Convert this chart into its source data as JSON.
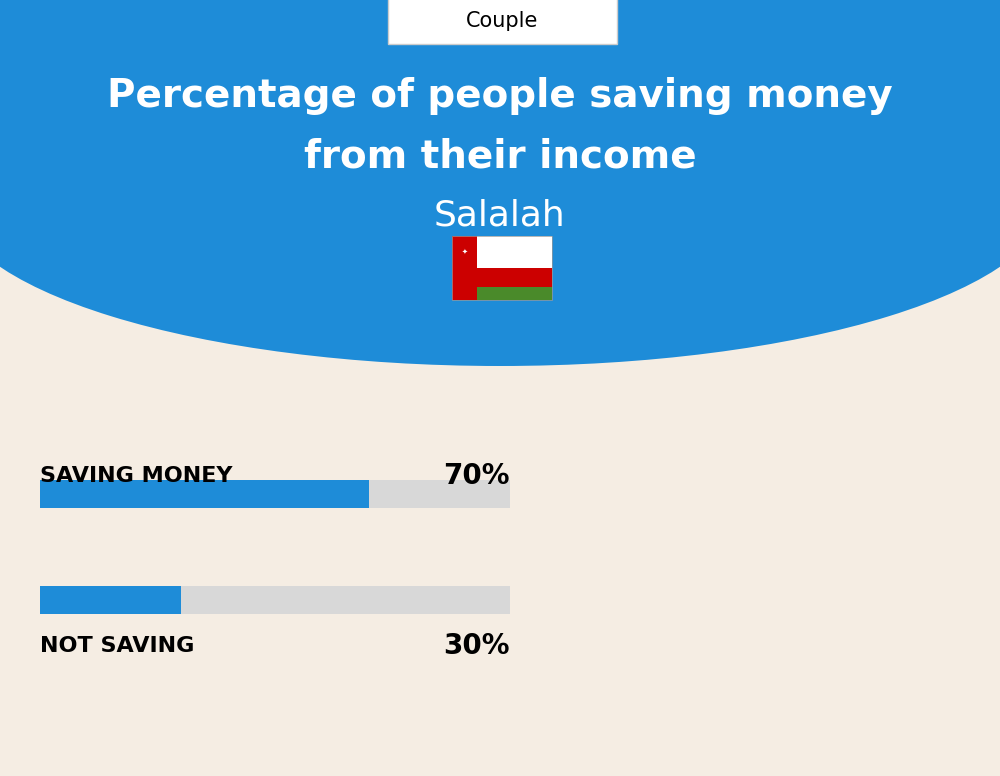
{
  "title_line1": "Percentage of people saving money",
  "title_line2": "from their income",
  "subtitle": "Salalah",
  "tab_label": "Couple",
  "bar1_label": "SAVING MONEY",
  "bar1_value": 70,
  "bar1_pct": "70%",
  "bar2_label": "NOT SAVING",
  "bar2_value": 30,
  "bar2_pct": "30%",
  "header_blue": "#1E8CD8",
  "bar_blue": "#1E8CD8",
  "bar_gray": "#D8D8D8",
  "bg_color": "#F5EDE3",
  "white": "#FFFFFF",
  "black": "#000000",
  "title_fontsize": 28,
  "subtitle_fontsize": 26,
  "tab_fontsize": 15,
  "label_fontsize": 16,
  "pct_fontsize": 20,
  "fig_width": 10.0,
  "fig_height": 7.76,
  "dpi": 100
}
